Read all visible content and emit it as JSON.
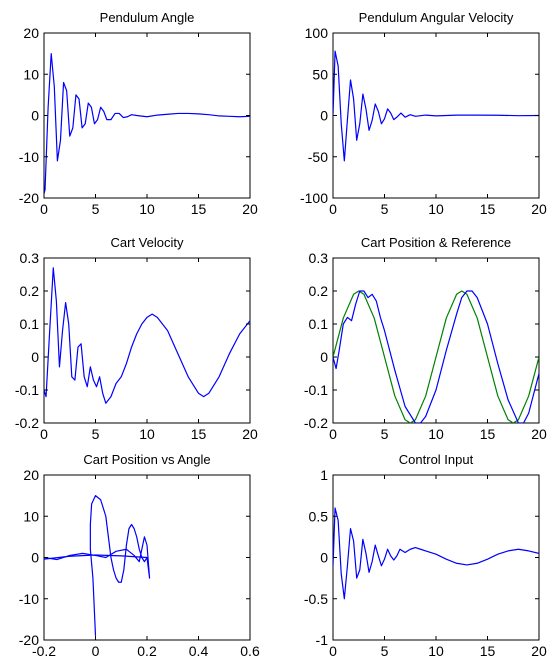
{
  "figure": {
    "background": "#ffffff",
    "series_colors": {
      "blue": "#0000ff",
      "green": "#008000"
    }
  },
  "chart_data": [
    {
      "type": "line",
      "title": "Pendulum Angle",
      "xlim": [
        0,
        20
      ],
      "ylim": [
        -20,
        20
      ],
      "xticks": [
        0,
        5,
        10,
        15,
        20
      ],
      "yticks": [
        -20,
        -10,
        0,
        10,
        20
      ],
      "grid": false,
      "series": [
        {
          "color": "#0000ff",
          "x": [
            0,
            0.1,
            0.4,
            0.7,
            1.0,
            1.3,
            1.6,
            1.9,
            2.2,
            2.5,
            2.8,
            3.1,
            3.4,
            3.7,
            4.0,
            4.3,
            4.6,
            4.9,
            5.2,
            5.5,
            5.8,
            6.1,
            6.5,
            6.9,
            7.3,
            7.7,
            8.1,
            8.5,
            9,
            10,
            11,
            12,
            13,
            14,
            15,
            16,
            17,
            18,
            19,
            20
          ],
          "y": [
            -19,
            -18,
            2,
            15,
            7,
            -11,
            -6,
            8,
            6,
            -5,
            -3,
            5,
            4,
            -3,
            -2,
            3,
            2,
            -2,
            -1,
            2,
            1,
            -1,
            -1,
            0.5,
            0.5,
            -0.5,
            -0.3,
            0.2,
            0,
            -0.3,
            0.1,
            0.3,
            0.5,
            0.5,
            0.4,
            0.2,
            -0.1,
            -0.2,
            -0.3,
            -0.2
          ]
        }
      ]
    },
    {
      "type": "line",
      "title": "Pendulum Angular Velocity",
      "xlim": [
        0,
        20
      ],
      "ylim": [
        -100,
        100
      ],
      "xticks": [
        0,
        5,
        10,
        15,
        20
      ],
      "yticks": [
        -100,
        -50,
        0,
        50,
        100
      ],
      "grid": false,
      "series": [
        {
          "color": "#0000ff",
          "x": [
            0,
            0.2,
            0.5,
            0.8,
            1.1,
            1.4,
            1.7,
            2.0,
            2.3,
            2.6,
            2.9,
            3.2,
            3.5,
            3.8,
            4.1,
            4.4,
            4.7,
            5.0,
            5.3,
            5.6,
            5.9,
            6.2,
            6.6,
            7.0,
            7.5,
            8,
            9,
            10,
            12,
            14,
            16,
            18,
            20
          ],
          "y": [
            0,
            78,
            60,
            -10,
            -55,
            -5,
            43,
            20,
            -30,
            -10,
            26,
            8,
            -18,
            -6,
            14,
            5,
            -10,
            -4,
            8,
            3,
            -5,
            -2,
            3,
            -2,
            1,
            -1,
            0.5,
            -0.5,
            0.5,
            0.5,
            0.3,
            -0.2,
            0
          ]
        }
      ]
    },
    {
      "type": "line",
      "title": "Cart Velocity",
      "xlim": [
        0,
        20
      ],
      "ylim": [
        -0.2,
        0.3
      ],
      "xticks": [
        0,
        5,
        10,
        15,
        20
      ],
      "yticks": [
        -0.2,
        -0.1,
        0,
        0.1,
        0.2,
        0.3
      ],
      "grid": false,
      "series": [
        {
          "color": "#0000ff",
          "x": [
            0,
            0.2,
            0.5,
            0.9,
            1.2,
            1.5,
            1.8,
            2.1,
            2.4,
            2.7,
            3.0,
            3.3,
            3.6,
            3.9,
            4.2,
            4.5,
            4.8,
            5.1,
            5.4,
            5.7,
            6.0,
            6.5,
            7,
            7.5,
            8,
            8.5,
            9,
            9.5,
            10,
            10.5,
            11,
            12,
            13,
            14,
            15,
            15.5,
            16,
            17,
            18,
            19,
            20
          ],
          "y": [
            -0.1,
            -0.12,
            0.05,
            0.27,
            0.17,
            -0.03,
            0.08,
            0.165,
            0.1,
            -0.06,
            -0.07,
            0.03,
            0.04,
            -0.06,
            -0.09,
            -0.03,
            -0.07,
            -0.09,
            -0.06,
            -0.11,
            -0.14,
            -0.12,
            -0.08,
            -0.06,
            -0.02,
            0.03,
            0.07,
            0.1,
            0.12,
            0.13,
            0.12,
            0.08,
            0.01,
            -0.06,
            -0.11,
            -0.12,
            -0.11,
            -0.06,
            0.01,
            0.07,
            0.11
          ]
        }
      ]
    },
    {
      "type": "line",
      "title": "Cart Position & Reference",
      "xlim": [
        0,
        20
      ],
      "ylim": [
        -0.2,
        0.3
      ],
      "xticks": [
        0,
        5,
        10,
        15,
        20
      ],
      "yticks": [
        -0.2,
        -0.1,
        0,
        0.1,
        0.2,
        0.3
      ],
      "grid": false,
      "series": [
        {
          "color": "#008000",
          "x": [
            0,
            1,
            2,
            2.5,
            3,
            4,
            5,
            6,
            7,
            7.5,
            8,
            9,
            10,
            11,
            12,
            12.5,
            13,
            14,
            15,
            16,
            17,
            17.5,
            18,
            19,
            20
          ],
          "y": [
            0,
            0.118,
            0.19,
            0.2,
            0.19,
            0.118,
            0,
            -0.118,
            -0.19,
            -0.2,
            -0.19,
            -0.118,
            0,
            0.118,
            0.19,
            0.2,
            0.19,
            0.118,
            0,
            -0.118,
            -0.19,
            -0.2,
            -0.19,
            -0.118,
            0
          ]
        },
        {
          "color": "#0000ff",
          "x": [
            0,
            0.3,
            0.6,
            1.0,
            1.4,
            1.8,
            2.2,
            2.6,
            3.0,
            3.4,
            3.8,
            4.2,
            4.6,
            5,
            6,
            7,
            8,
            8.5,
            9,
            10,
            11,
            12,
            12.5,
            13,
            13.5,
            14,
            15,
            16,
            17,
            18,
            18.5,
            19,
            20
          ],
          "y": [
            0,
            -0.035,
            0.02,
            0.1,
            0.12,
            0.11,
            0.16,
            0.2,
            0.2,
            0.18,
            0.19,
            0.17,
            0.12,
            0.08,
            -0.04,
            -0.15,
            -0.2,
            -0.2,
            -0.18,
            -0.1,
            0.02,
            0.13,
            0.18,
            0.2,
            0.2,
            0.18,
            0.1,
            -0.02,
            -0.13,
            -0.2,
            -0.2,
            -0.17,
            -0.05
          ]
        }
      ]
    },
    {
      "type": "line",
      "title": "Cart Position vs Angle",
      "xlim": [
        -0.2,
        0.6
      ],
      "ylim": [
        -20,
        20
      ],
      "xticks": [
        -0.2,
        0,
        0.2,
        0.4,
        0.6
      ],
      "yticks": [
        -20,
        -10,
        0,
        10,
        20
      ],
      "grid": false,
      "series": [
        {
          "color": "#0000ff",
          "x": [
            0,
            -0.005,
            -0.01,
            -0.02,
            -0.02,
            -0.015,
            0,
            0.02,
            0.04,
            0.05,
            0.06,
            0.07,
            0.08,
            0.09,
            0.1,
            0.11,
            0.12,
            0.13,
            0.14,
            0.15,
            0.16,
            0.17,
            0.18,
            0.19,
            0.2,
            0.21,
            0.2,
            0.19,
            0.18,
            0.17,
            0.15,
            0.12,
            0.08,
            0.04,
            0,
            -0.05,
            -0.1,
            -0.15,
            -0.2
          ],
          "y": [
            -19,
            -12,
            -5,
            2,
            8,
            13,
            15,
            14,
            10,
            5,
            0,
            -3,
            -5,
            -6,
            -6,
            -3,
            3,
            7,
            8,
            7,
            5,
            2,
            0,
            -1,
            0,
            -5,
            3,
            5,
            2,
            -1,
            0.5,
            2,
            1.5,
            0,
            0.5,
            1,
            0.5,
            -0.5,
            0
          ]
        },
        {
          "color": "#0000ff",
          "x": [
            0.2,
            0.1,
            0,
            -0.1,
            -0.2
          ],
          "y": [
            0,
            0.4,
            0.6,
            0.3,
            -0.4
          ]
        }
      ]
    },
    {
      "type": "line",
      "title": "Control Input",
      "xlim": [
        0,
        20
      ],
      "ylim": [
        -1,
        1
      ],
      "xticks": [
        0,
        5,
        10,
        15,
        20
      ],
      "yticks": [
        -1,
        -0.5,
        0,
        0.5,
        1
      ],
      "grid": false,
      "series": [
        {
          "color": "#0000ff",
          "x": [
            0,
            0.2,
            0.5,
            0.8,
            1.1,
            1.4,
            1.7,
            2.0,
            2.3,
            2.6,
            2.9,
            3.2,
            3.5,
            3.8,
            4.1,
            4.4,
            4.7,
            5.0,
            5.3,
            5.6,
            5.9,
            6.2,
            6.5,
            7,
            7.5,
            8,
            8.5,
            9,
            10,
            11,
            12,
            13,
            14,
            15,
            16,
            17,
            18,
            19,
            20
          ],
          "y": [
            -0.1,
            0.6,
            0.45,
            -0.2,
            -0.5,
            -0.1,
            0.35,
            0.2,
            -0.25,
            -0.15,
            0.22,
            0.05,
            -0.18,
            -0.05,
            0.15,
            0.02,
            -0.1,
            -0.02,
            0.1,
            0.02,
            -0.03,
            0.02,
            0.1,
            0.06,
            0.1,
            0.12,
            0.1,
            0.08,
            0.04,
            -0.02,
            -0.07,
            -0.09,
            -0.07,
            -0.02,
            0.04,
            0.08,
            0.1,
            0.08,
            0.05
          ]
        }
      ]
    }
  ]
}
